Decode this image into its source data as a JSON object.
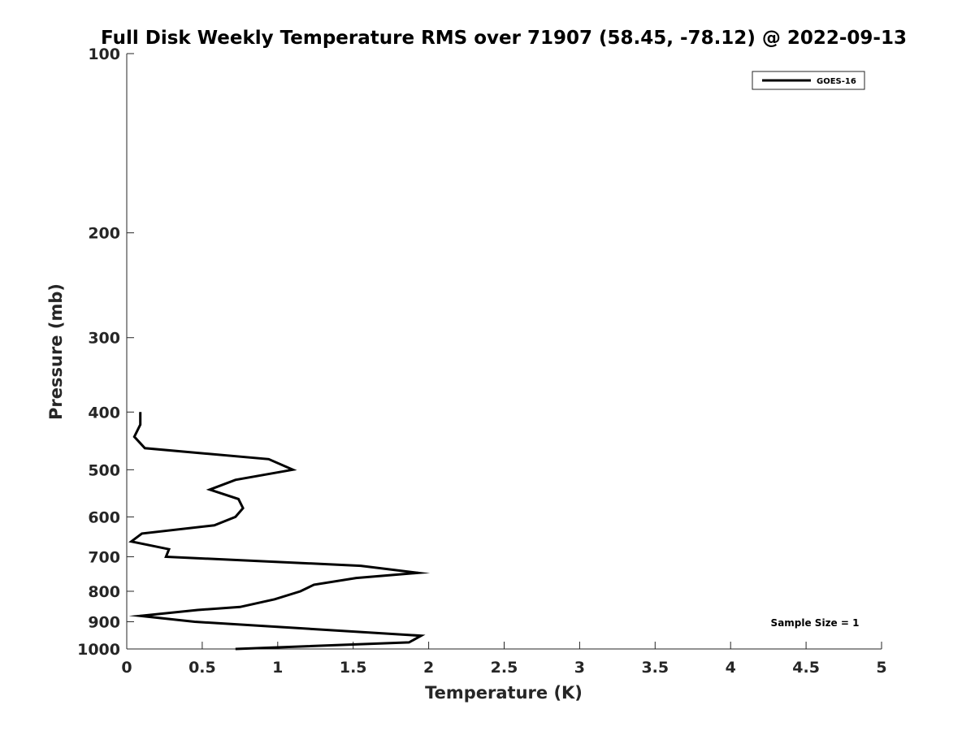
{
  "chart_data": {
    "type": "line",
    "title": "Full Disk Weekly Temperature RMS over 71907 (58.45, -78.12) @ 2022-09-13",
    "xlabel": "Temperature (K)",
    "ylabel": "Pressure (mb)",
    "xlim": [
      0,
      5
    ],
    "ylim": [
      100,
      1000
    ],
    "y_scale": "log",
    "y_reversed": true,
    "grid": false,
    "xticks": [
      0,
      0.5,
      1,
      1.5,
      2,
      2.5,
      3,
      3.5,
      4,
      4.5,
      5
    ],
    "xtick_labels": [
      "0",
      "0.5",
      "1",
      "1.5",
      "2",
      "2.5",
      "3",
      "3.5",
      "4",
      "4.5",
      "5"
    ],
    "yticks": [
      100,
      200,
      300,
      400,
      500,
      600,
      700,
      800,
      900,
      1000
    ],
    "ytick_labels": [
      "100",
      "200",
      "300",
      "400",
      "500",
      "600",
      "700",
      "800",
      "900",
      "1000"
    ],
    "legend_position": "top-right",
    "series": [
      {
        "name": "GOES-16",
        "color": "#000000",
        "x": [
          0.09,
          0.09,
          0.05,
          0.12,
          0.94,
          1.1,
          0.72,
          0.55,
          0.74,
          0.77,
          0.72,
          0.58,
          0.1,
          0.03,
          0.28,
          0.26,
          1.55,
          1.93,
          1.52,
          1.24,
          1.15,
          0.98,
          0.75,
          0.47,
          0.09,
          0.45,
          1.95,
          1.87,
          0.72
        ],
        "y": [
          400,
          420,
          440,
          460,
          480,
          500,
          520,
          540,
          560,
          580,
          600,
          620,
          640,
          660,
          680,
          700,
          725,
          745,
          760,
          780,
          800,
          825,
          850,
          860,
          880,
          900,
          950,
          975,
          1000
        ]
      }
    ],
    "annotation": "Sample Size = 1"
  }
}
